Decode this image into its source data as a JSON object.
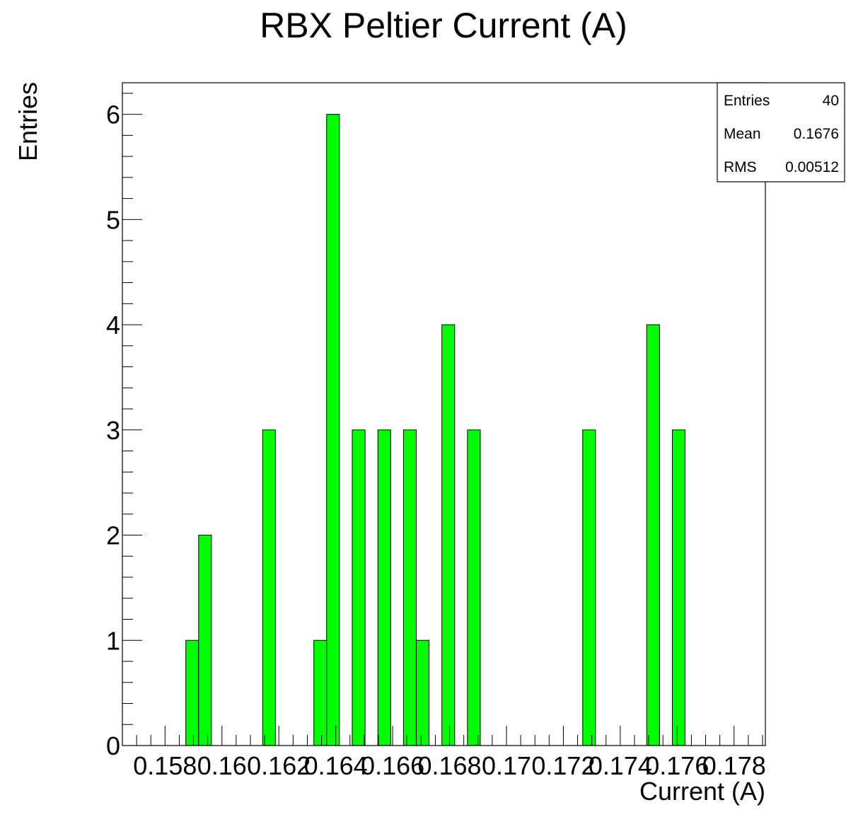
{
  "chart_data": {
    "type": "bar",
    "title": "RBX Peltier Current (A)",
    "xlabel": "Current (A)",
    "ylabel": "Entries",
    "xlim": [
      0.1565,
      0.1791
    ],
    "ylim": [
      0,
      6.3
    ],
    "x_ticks": [
      "0.158",
      "0.16",
      "0.162",
      "0.164",
      "0.166",
      "0.168",
      "0.17",
      "0.172",
      "0.174",
      "0.176",
      "0.178"
    ],
    "x_tick_values": [
      0.158,
      0.16,
      0.162,
      0.164,
      0.166,
      0.168,
      0.17,
      0.172,
      0.174,
      0.176,
      0.178
    ],
    "y_ticks": [
      "0",
      "1",
      "2",
      "3",
      "4",
      "5",
      "6"
    ],
    "y_tick_values": [
      0,
      1,
      2,
      3,
      4,
      5,
      6
    ],
    "bin_width": 0.00045,
    "bins": [
      {
        "x_low": 0.15873,
        "value": 1
      },
      {
        "x_low": 0.15918,
        "value": 2
      },
      {
        "x_low": 0.16143,
        "value": 3
      },
      {
        "x_low": 0.16323,
        "value": 1
      },
      {
        "x_low": 0.16368,
        "value": 6
      },
      {
        "x_low": 0.16458,
        "value": 3
      },
      {
        "x_low": 0.16548,
        "value": 3
      },
      {
        "x_low": 0.16638,
        "value": 3
      },
      {
        "x_low": 0.16683,
        "value": 1
      },
      {
        "x_low": 0.16773,
        "value": 4
      },
      {
        "x_low": 0.16863,
        "value": 3
      },
      {
        "x_low": 0.17268,
        "value": 3
      },
      {
        "x_low": 0.17493,
        "value": 4
      },
      {
        "x_low": 0.17583,
        "value": 3
      }
    ],
    "bar_color": "#00ff00",
    "bar_edge_color": "#000000",
    "grid": false,
    "legend": "none"
  },
  "stats_box": {
    "placement": "top-right",
    "rows": [
      {
        "label": "Entries",
        "value": "40"
      },
      {
        "label": "Mean",
        "value": "0.1676"
      },
      {
        "label": "RMS",
        "value": "0.00512"
      }
    ]
  }
}
